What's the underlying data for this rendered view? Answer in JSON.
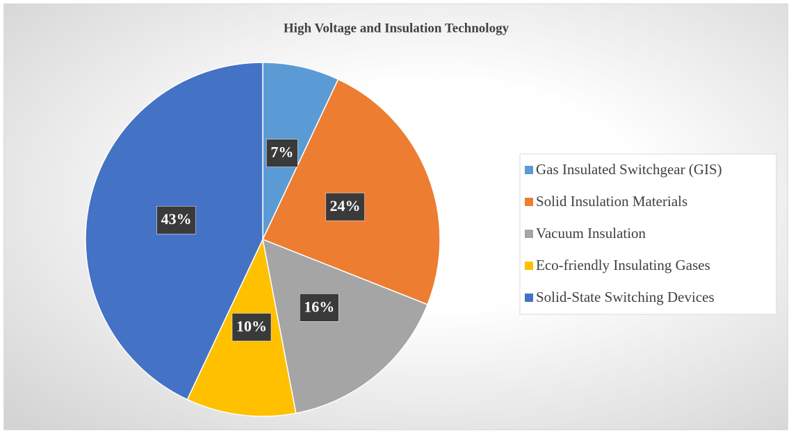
{
  "chart_data": {
    "type": "pie",
    "title": "High Voltage and Insulation Technology",
    "categories": [
      "Gas Insulated Switchgear (GIS)",
      "Solid Insulation Materials",
      "Vacuum Insulation",
      "Eco-friendly Insulating Gases",
      "Solid-State Switching Devices"
    ],
    "values": [
      7,
      24,
      16,
      10,
      43
    ],
    "value_labels": [
      "7%",
      "24%",
      "16%",
      "10%",
      "43%"
    ],
    "colors": [
      "#5b9bd5",
      "#ed7d31",
      "#a5a5a5",
      "#ffc000",
      "#4472c4"
    ],
    "legend": "right"
  }
}
